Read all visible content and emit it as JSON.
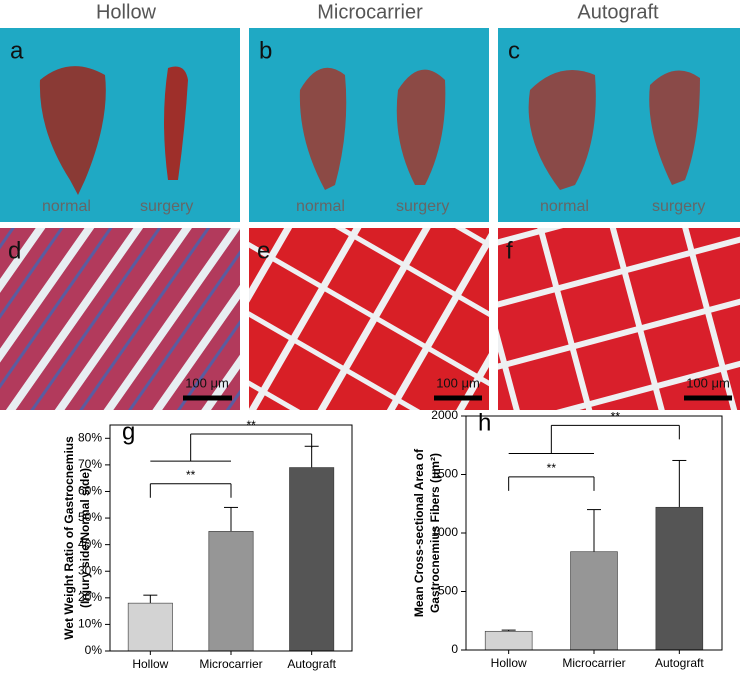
{
  "columns": [
    "Hollow",
    "Microcarrier",
    "Autograft"
  ],
  "photos": [
    {
      "label": "a",
      "normal": "normal",
      "surgery": "surgery"
    },
    {
      "label": "b",
      "normal": "normal",
      "surgery": "surgery"
    },
    {
      "label": "c",
      "normal": "normal",
      "surgery": "surgery"
    }
  ],
  "histology": [
    {
      "label": "d",
      "scale_bar": "100 μm"
    },
    {
      "label": "e",
      "scale_bar": "100 μm"
    },
    {
      "label": "f",
      "scale_bar": "100 μm"
    }
  ],
  "chart_data": [
    {
      "type": "bar",
      "panel_label": "g",
      "ylabel": [
        "Wet Weight Ratio of Gastrocnemius",
        "(Injury side/Normal side)"
      ],
      "categories": [
        "Hollow",
        "Microcarrier",
        "Autograft"
      ],
      "colors": [
        "#d3d3d3",
        "#969696",
        "#555555"
      ],
      "values": [
        18,
        45,
        69
      ],
      "errors": [
        3,
        9,
        8
      ],
      "ylim": [
        0,
        85
      ],
      "yticks": [
        {
          "value": 0,
          "label": "0%"
        },
        {
          "value": 10,
          "label": "10%"
        },
        {
          "value": 20,
          "label": "20%"
        },
        {
          "value": 30,
          "label": "30%"
        },
        {
          "value": 40,
          "label": "40%"
        },
        {
          "value": 50,
          "label": "50%"
        },
        {
          "value": 60,
          "label": "60%"
        },
        {
          "value": 70,
          "label": "70%"
        },
        {
          "value": 80,
          "label": "80%"
        }
      ],
      "significance": [
        "**",
        "**"
      ]
    },
    {
      "type": "bar",
      "panel_label": "h",
      "ylabel": [
        "Mean Cross-sectional Area of",
        "Gastrocnemius Fibers (μm²)"
      ],
      "categories": [
        "Hollow",
        "Microcarrier",
        "Autograft"
      ],
      "colors": [
        "#d3d3d3",
        "#969696",
        "#555555"
      ],
      "values": [
        160,
        840,
        1220
      ],
      "errors": [
        10,
        360,
        400
      ],
      "ylim": [
        0,
        2000
      ],
      "yticks": [
        0,
        500,
        1000,
        1500,
        2000
      ],
      "significance": [
        "**",
        "**"
      ]
    }
  ]
}
